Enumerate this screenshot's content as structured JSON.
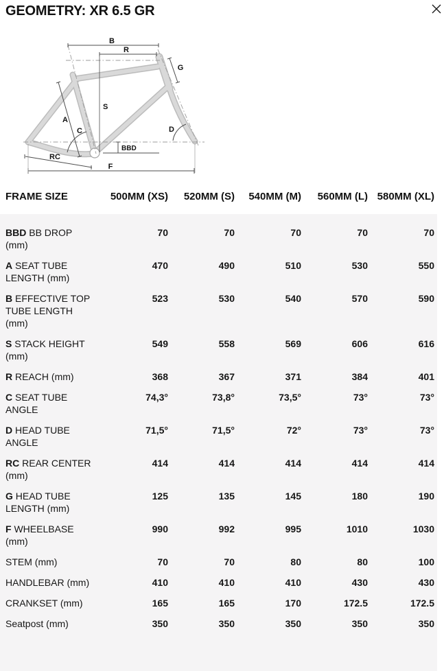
{
  "header": {
    "title": "GEOMETRY: XR 6.5 GR"
  },
  "icons": {
    "close": "close-x"
  },
  "colors": {
    "panel_bg": "#f5f4f5",
    "text": "#161616",
    "frame_tube": "#d9d9d9",
    "frame_outline": "#bcbcbc",
    "dim_line": "#4d4d4d"
  },
  "diagram": {
    "labels": {
      "B": "B",
      "R": "R",
      "G": "G",
      "S": "S",
      "A": "A",
      "C": "C",
      "D": "D",
      "BBD": "BBD",
      "RC": "RC",
      "F": "F"
    }
  },
  "table": {
    "frame_size_header": "FRAME SIZE",
    "size_headers": [
      "500MM (XS)",
      "520MM (S)",
      "540MM (M)",
      "560MM (L)",
      "580MM (XL)"
    ],
    "rows": [
      {
        "prefix": "BBD",
        "lines": [
          "BB DROP",
          "(mm)"
        ],
        "values": [
          "70",
          "70",
          "70",
          "70",
          "70"
        ]
      },
      {
        "prefix": "A",
        "lines": [
          "SEAT TUBE",
          "LENGTH (mm)"
        ],
        "values": [
          "470",
          "490",
          "510",
          "530",
          "550"
        ]
      },
      {
        "prefix": "B",
        "lines": [
          "EFFECTIVE TOP",
          "TUBE LENGTH",
          "(mm)"
        ],
        "values": [
          "523",
          "530",
          "540",
          "570",
          "590"
        ]
      },
      {
        "prefix": "S",
        "lines": [
          "STACK HEIGHT",
          "(mm)"
        ],
        "values": [
          "549",
          "558",
          "569",
          "606",
          "616"
        ]
      },
      {
        "prefix": "R",
        "lines": [
          "REACH (mm)"
        ],
        "values": [
          "368",
          "367",
          "371",
          "384",
          "401"
        ]
      },
      {
        "prefix": "C",
        "lines": [
          "SEAT TUBE",
          "ANGLE"
        ],
        "values": [
          "74,3°",
          "73,8°",
          "73,5°",
          "73°",
          "73°"
        ]
      },
      {
        "prefix": "D",
        "lines": [
          "HEAD TUBE",
          "ANGLE"
        ],
        "values": [
          "71,5°",
          "71,5°",
          "72°",
          "73°",
          "73°"
        ]
      },
      {
        "prefix": "RC",
        "lines": [
          "REAR CENTER",
          "(mm)"
        ],
        "values": [
          "414",
          "414",
          "414",
          "414",
          "414"
        ]
      },
      {
        "prefix": "G",
        "lines": [
          "HEAD TUBE",
          "LENGTH (mm)"
        ],
        "values": [
          "125",
          "135",
          "145",
          "180",
          "190"
        ]
      },
      {
        "prefix": "F",
        "lines": [
          "WHEELBASE",
          "(mm)"
        ],
        "values": [
          "990",
          "992",
          "995",
          "1010",
          "1030"
        ]
      },
      {
        "prefix": "",
        "lines": [
          "STEM (mm)"
        ],
        "values": [
          "70",
          "70",
          "80",
          "80",
          "100"
        ]
      },
      {
        "prefix": "",
        "lines": [
          "HANDLEBAR (mm)"
        ],
        "values": [
          "410",
          "410",
          "410",
          "430",
          "430"
        ]
      },
      {
        "prefix": "",
        "lines": [
          "CRANKSET (mm)"
        ],
        "values": [
          "165",
          "165",
          "170",
          "172.5",
          "172.5"
        ]
      },
      {
        "prefix": "",
        "lines": [
          "Seatpost (mm)"
        ],
        "values": [
          "350",
          "350",
          "350",
          "350",
          "350"
        ]
      }
    ]
  }
}
